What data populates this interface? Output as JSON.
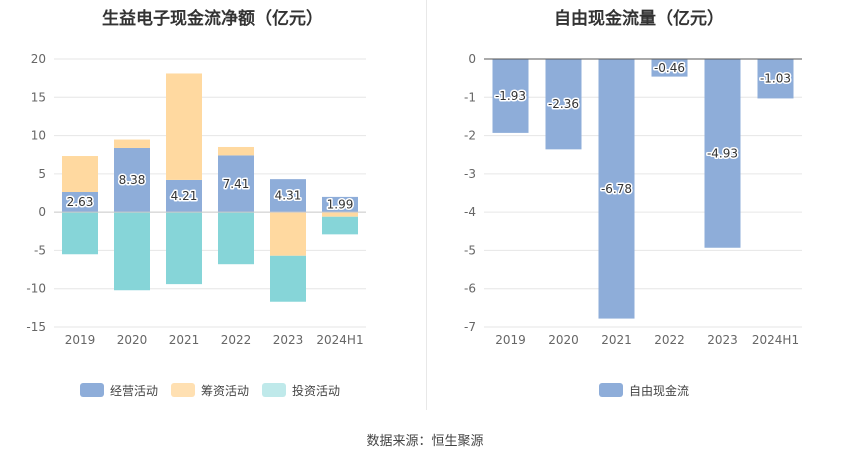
{
  "source": "数据来源：恒生聚源",
  "chart_data": [
    {
      "type": "bar",
      "stacked": true,
      "title": "生益电子现金流净额（亿元）",
      "categories": [
        "2019",
        "2020",
        "2021",
        "2022",
        "2023",
        "2024H1"
      ],
      "ylim": [
        -15,
        20
      ],
      "yticks": [
        "20",
        "15",
        "10",
        "5",
        "0",
        "-5",
        "-10",
        "-15"
      ],
      "grid": true,
      "legend_position": "bottom",
      "series": [
        {
          "name": "经营活动",
          "color": "#8eadd9",
          "values": [
            2.63,
            8.38,
            4.21,
            7.41,
            4.31,
            1.99
          ],
          "labels": [
            "2.63",
            "8.38",
            "4.21",
            "7.41",
            "4.31",
            "1.99"
          ]
        },
        {
          "name": "筹资活动",
          "color": "#ffd9a0",
          "values": [
            4.7,
            1.1,
            13.9,
            1.1,
            -5.7,
            -0.6
          ]
        },
        {
          "name": "投资活动",
          "color": "#86d5d8",
          "values": [
            -5.5,
            -10.2,
            -9.4,
            -6.8,
            -6.0,
            -2.3
          ]
        }
      ]
    },
    {
      "type": "bar",
      "title": "自由现金流量（亿元）",
      "categories": [
        "2019",
        "2020",
        "2021",
        "2022",
        "2023",
        "2024H1"
      ],
      "ylim": [
        -7,
        0
      ],
      "yticks": [
        "0",
        "-1",
        "-2",
        "-3",
        "-4",
        "-5",
        "-6",
        "-7"
      ],
      "grid": true,
      "legend_position": "bottom",
      "series": [
        {
          "name": "自由现金流",
          "color": "#8eadd9",
          "values": [
            -1.93,
            -2.36,
            -6.78,
            -0.46,
            -4.93,
            -1.03
          ],
          "labels": [
            "-1.93",
            "-2.36",
            "-6.78",
            "-0.46",
            "-4.93",
            "-1.03"
          ]
        }
      ]
    }
  ]
}
